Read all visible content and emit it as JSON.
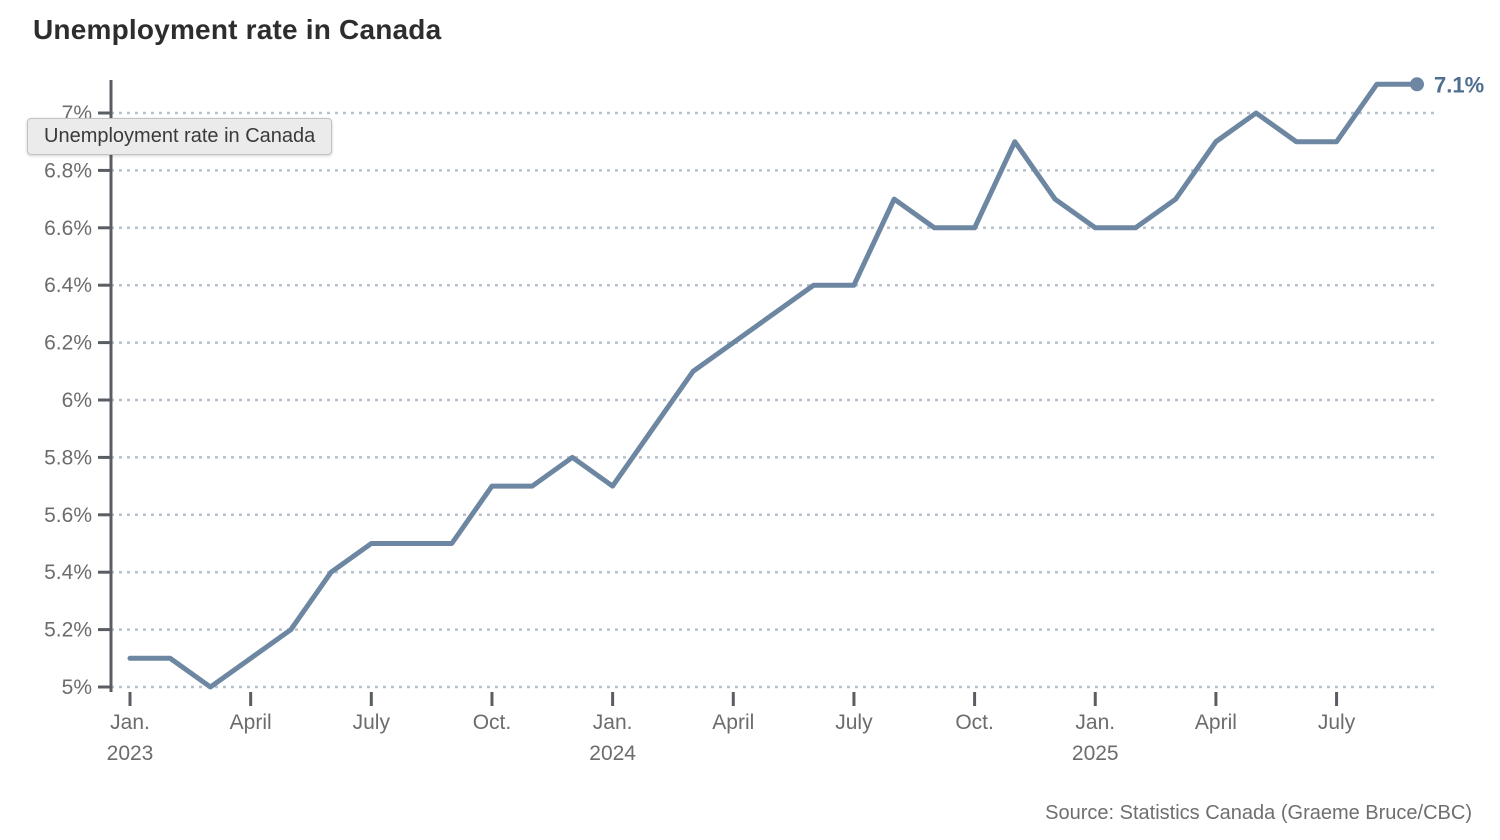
{
  "page": {
    "title": "Unemployment rate in Canada",
    "tooltip_text": "Unemployment rate in Canada",
    "source": "Source: Statistics Canada (Graeme Bruce/CBC)"
  },
  "colors": {
    "line": "#6d87a2",
    "end_label": "#4f6e90",
    "grid": "#b5c2cc",
    "axis": "#5a5e63",
    "tick_label": "#6c6c6c",
    "title": "#2d2d2d",
    "tooltip_bg": "#ebebeb",
    "tooltip_border": "#c2c2c2",
    "source_text": "#6f6f6f",
    "background": "#ffffff"
  },
  "chart_data": {
    "type": "line",
    "title": "Unemployment rate in Canada",
    "unit": "%",
    "grid": "horizontal-dashed",
    "legend_position": "none",
    "ylim": [
      5.0,
      7.1
    ],
    "x": [
      "Jan. 2023",
      "Feb. 2023",
      "March 2023",
      "April 2023",
      "May 2023",
      "June 2023",
      "July 2023",
      "Aug. 2023",
      "Sept. 2023",
      "Oct. 2023",
      "Nov. 2023",
      "Dec. 2023",
      "Jan. 2024",
      "Feb. 2024",
      "March 2024",
      "April 2024",
      "May 2024",
      "June 2024",
      "July 2024",
      "Aug. 2024",
      "Sept. 2024",
      "Oct. 2024",
      "Nov. 2024",
      "Dec. 2024",
      "Jan. 2025",
      "Feb. 2025",
      "March 2025",
      "April 2025",
      "May 2025",
      "June 2025",
      "July 2025",
      "Aug. 2025",
      "Sept. 2025"
    ],
    "values": [
      5.1,
      5.1,
      5.0,
      5.1,
      5.2,
      5.4,
      5.5,
      5.5,
      5.5,
      5.7,
      5.7,
      5.8,
      5.7,
      5.9,
      6.1,
      6.2,
      6.3,
      6.4,
      6.4,
      6.7,
      6.6,
      6.6,
      6.9,
      6.7,
      6.6,
      6.6,
      6.7,
      6.9,
      7.0,
      6.9,
      6.9,
      7.1,
      7.1
    ],
    "yticks": [
      {
        "value": 5.0,
        "label": "5%"
      },
      {
        "value": 5.2,
        "label": "5.2%"
      },
      {
        "value": 5.4,
        "label": "5.4%"
      },
      {
        "value": 5.6,
        "label": "5.6%"
      },
      {
        "value": 5.8,
        "label": "5.8%"
      },
      {
        "value": 6.0,
        "label": "6%"
      },
      {
        "value": 6.2,
        "label": "6.2%"
      },
      {
        "value": 6.4,
        "label": "6.4%"
      },
      {
        "value": 6.6,
        "label": "6.6%"
      },
      {
        "value": 6.8,
        "label": "6.8%"
      },
      {
        "value": 7.0,
        "label": "7%"
      }
    ],
    "xticks": [
      {
        "index": 0,
        "label": "Jan.",
        "year": "2023"
      },
      {
        "index": 3,
        "label": "April"
      },
      {
        "index": 6,
        "label": "July"
      },
      {
        "index": 9,
        "label": "Oct."
      },
      {
        "index": 12,
        "label": "Jan.",
        "year": "2024"
      },
      {
        "index": 15,
        "label": "April"
      },
      {
        "index": 18,
        "label": "July"
      },
      {
        "index": 21,
        "label": "Oct."
      },
      {
        "index": 24,
        "label": "Jan.",
        "year": "2025"
      },
      {
        "index": 27,
        "label": "April"
      },
      {
        "index": 30,
        "label": "July"
      }
    ],
    "last_point_label": "7.1%"
  }
}
